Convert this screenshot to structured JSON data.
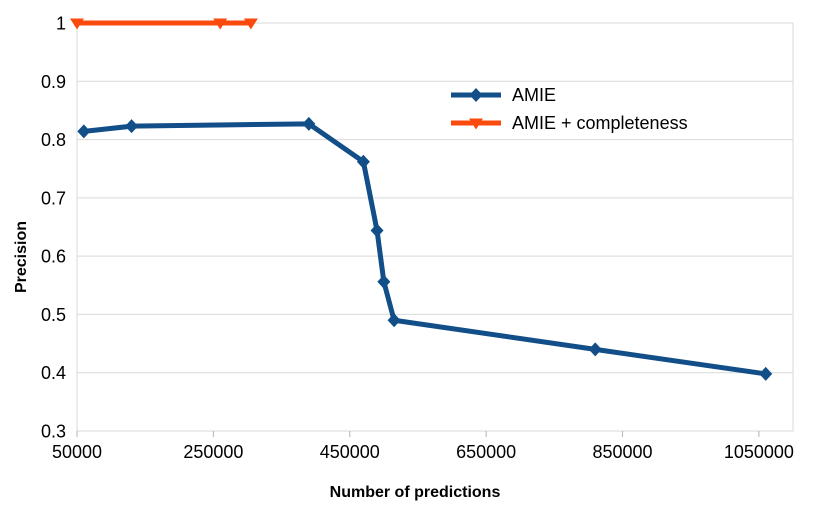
{
  "chart_data": {
    "type": "line",
    "title": "",
    "xlabel": "Number of predictions",
    "ylabel": "Precision",
    "xlim": [
      50000,
      1100000
    ],
    "ylim": [
      0.3,
      1.0
    ],
    "x_ticks": [
      50000,
      250000,
      450000,
      650000,
      850000,
      1050000
    ],
    "y_ticks": [
      0.3,
      0.4,
      0.5,
      0.6,
      0.7,
      0.8,
      0.9,
      1
    ],
    "grid": "horizontal-only",
    "legend": {
      "position": "inside-top-right",
      "border": false
    },
    "colors": {
      "background": "#ffffff",
      "grid": "#d9d9d9",
      "axis_border": "#d9d9d9",
      "tick": "#b3b3b3",
      "text": "#000000"
    },
    "series": [
      {
        "name": "AMIE",
        "color": "#124E87",
        "marker": "diamond",
        "points": [
          [
            60000,
            0.814
          ],
          [
            130000,
            0.823
          ],
          [
            390000,
            0.827
          ],
          [
            470000,
            0.762
          ],
          [
            490000,
            0.644
          ],
          [
            500000,
            0.556
          ],
          [
            515000,
            0.49
          ],
          [
            810000,
            0.44
          ],
          [
            1060000,
            0.398
          ]
        ]
      },
      {
        "name": "AMIE + completeness",
        "color": "#FB4A0E",
        "marker": "triangle-down",
        "points": [
          [
            50000,
            1.0
          ],
          [
            260000,
            1.0
          ],
          [
            305000,
            1.0
          ]
        ]
      }
    ]
  }
}
